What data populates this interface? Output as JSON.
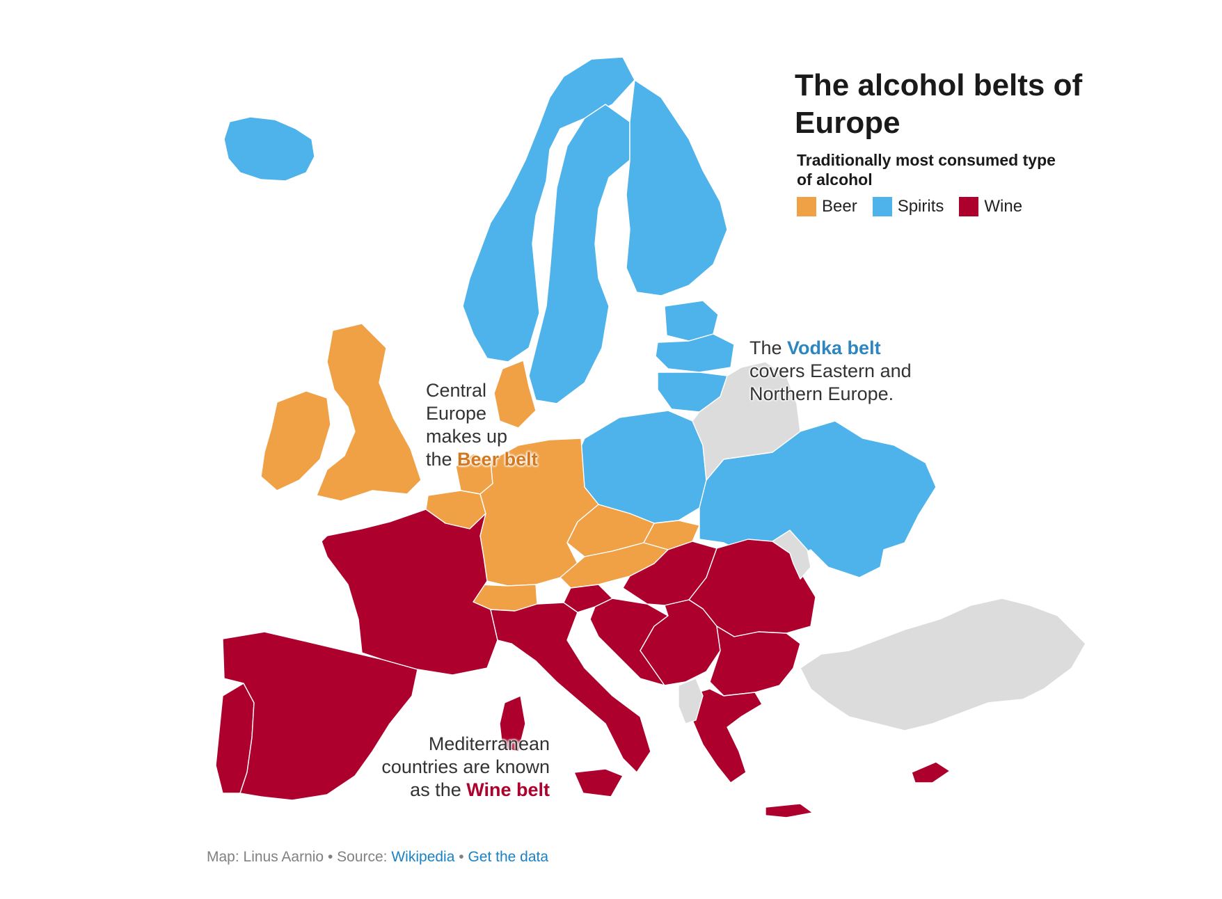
{
  "title": "The alcohol belts of Europe",
  "subtitle": "Traditionally most consumed type of alcohol",
  "colors": {
    "beer": "#f0a045",
    "spirits": "#4db3ea",
    "wine": "#ad002d",
    "nodata": "#dcdcdc",
    "link": "#1a82c4"
  },
  "legend": [
    {
      "label": "Beer",
      "key": "beer"
    },
    {
      "label": "Spirits",
      "key": "spirits"
    },
    {
      "label": "Wine",
      "key": "wine"
    }
  ],
  "annotations": {
    "beer": {
      "line1": "Central",
      "line2": "Europe",
      "line3": "makes up",
      "line4_prefix": "the ",
      "highlight": "Beer belt"
    },
    "vodka": {
      "prefix": "The ",
      "highlight": "Vodka belt",
      "line2": "covers Eastern and",
      "line3": "Northern Europe."
    },
    "wine": {
      "line1": "Mediterranean",
      "line2": "countries are known",
      "line3_prefix": "as the ",
      "highlight": "Wine belt"
    }
  },
  "footer": {
    "map_credit": "Map: Linus Aarnio",
    "separator": " • ",
    "source_label": "Source: ",
    "source_link": "Wikipedia",
    "data_link": "Get the data"
  },
  "regions": [
    {
      "name": "Iceland",
      "category": "spirits"
    },
    {
      "name": "Norway",
      "category": "spirits"
    },
    {
      "name": "Sweden",
      "category": "spirits"
    },
    {
      "name": "Finland",
      "category": "spirits"
    },
    {
      "name": "Estonia",
      "category": "spirits"
    },
    {
      "name": "Latvia",
      "category": "spirits"
    },
    {
      "name": "Lithuania",
      "category": "spirits"
    },
    {
      "name": "Poland",
      "category": "spirits"
    },
    {
      "name": "Ukraine",
      "category": "spirits"
    },
    {
      "name": "Ireland",
      "category": "beer"
    },
    {
      "name": "United Kingdom",
      "category": "beer"
    },
    {
      "name": "Denmark",
      "category": "beer"
    },
    {
      "name": "Netherlands",
      "category": "beer"
    },
    {
      "name": "Belgium",
      "category": "beer"
    },
    {
      "name": "Germany",
      "category": "beer"
    },
    {
      "name": "Czechia",
      "category": "beer"
    },
    {
      "name": "Slovakia",
      "category": "beer"
    },
    {
      "name": "Austria",
      "category": "beer"
    },
    {
      "name": "Switzerland",
      "category": "beer"
    },
    {
      "name": "Portugal",
      "category": "wine"
    },
    {
      "name": "Spain",
      "category": "wine"
    },
    {
      "name": "France",
      "category": "wine"
    },
    {
      "name": "Italy",
      "category": "wine"
    },
    {
      "name": "Slovenia",
      "category": "wine"
    },
    {
      "name": "Croatia",
      "category": "wine"
    },
    {
      "name": "Hungary",
      "category": "wine"
    },
    {
      "name": "Romania",
      "category": "wine"
    },
    {
      "name": "Serbia",
      "category": "wine"
    },
    {
      "name": "Bulgaria",
      "category": "wine"
    },
    {
      "name": "Greece",
      "category": "wine"
    },
    {
      "name": "Cyprus",
      "category": "wine"
    },
    {
      "name": "Belarus",
      "category": "nodata"
    },
    {
      "name": "Moldova",
      "category": "nodata"
    },
    {
      "name": "Albania",
      "category": "nodata"
    },
    {
      "name": "Turkey",
      "category": "nodata"
    }
  ]
}
